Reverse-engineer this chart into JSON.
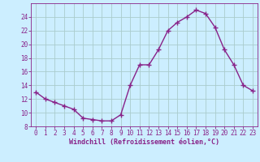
{
  "x": [
    0,
    1,
    2,
    3,
    4,
    5,
    6,
    7,
    8,
    9,
    10,
    11,
    12,
    13,
    14,
    15,
    16,
    17,
    18,
    19,
    20,
    21,
    22,
    23
  ],
  "y": [
    13,
    12,
    11.5,
    11,
    10.5,
    9.2,
    9,
    8.8,
    8.8,
    9.7,
    14,
    17,
    17,
    19.2,
    22,
    23.2,
    24,
    25,
    24.5,
    22.5,
    19.2,
    17,
    14,
    13.2
  ],
  "line_color": "#882288",
  "marker": "+",
  "marker_size": 4,
  "marker_linewidth": 1.0,
  "line_width": 1.0,
  "bg_color": "#cceeff",
  "grid_color": "#aacccc",
  "xlabel": "Windchill (Refroidissement éolien,°C)",
  "xlabel_color": "#882288",
  "tick_color": "#882288",
  "label_fontsize": 5.5,
  "xlabel_fontsize": 6.0,
  "ylim": [
    8,
    26
  ],
  "yticks": [
    8,
    10,
    12,
    14,
    16,
    18,
    20,
    22,
    24
  ],
  "xlim": [
    -0.5,
    23.5
  ],
  "xticks": [
    0,
    1,
    2,
    3,
    4,
    5,
    6,
    7,
    8,
    9,
    10,
    11,
    12,
    13,
    14,
    15,
    16,
    17,
    18,
    19,
    20,
    21,
    22,
    23
  ]
}
